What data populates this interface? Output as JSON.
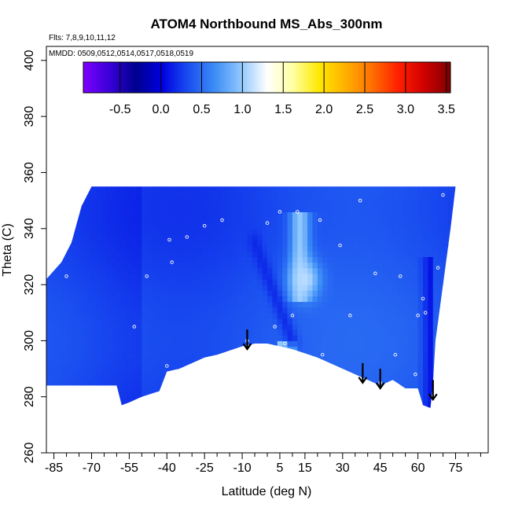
{
  "chart_data": {
    "type": "heatmap",
    "title": "ATOM4 Northbound MS_Abs_300nm",
    "flights_note": "Flts: 7,8,9,10,11,12",
    "dates_note": "MMDD: 0509,0512,0514,0517,0518,0519",
    "xlabel": "Latitude (deg N)",
    "ylabel": "Theta (C)",
    "xlim": [
      -88,
      88
    ],
    "ylim": [
      260,
      405
    ],
    "x_ticks": [
      -85,
      -70,
      -55,
      -40,
      -25,
      -10,
      5,
      15,
      30,
      45,
      60,
      75
    ],
    "x_minor_ticks": [
      -80,
      -75,
      -65,
      -60,
      -50,
      -45,
      -35,
      -30,
      -20,
      -15,
      -5,
      0,
      10,
      20,
      25,
      35,
      40,
      50,
      55,
      65,
      70,
      80,
      85
    ],
    "y_ticks": [
      260,
      280,
      300,
      320,
      340,
      360,
      380,
      400
    ],
    "colorbar": {
      "ticks": [
        -0.5,
        0.0,
        0.5,
        1.0,
        1.5,
        2.0,
        2.5,
        3.0,
        3.5
      ],
      "range": [
        -0.95,
        3.55
      ],
      "colors": [
        "#7f00ff",
        "#3800d8",
        "#00008f",
        "#0000e0",
        "#1a4ef0",
        "#3b8cf5",
        "#8ec6ff",
        "#ffffff",
        "#ffffa0",
        "#ffe800",
        "#ffb000",
        "#ff7000",
        "#ff2000",
        "#d00000",
        "#7f0000"
      ]
    },
    "field": {
      "baseline_value": 0.35,
      "top_boundary": [
        [
          -88,
          322
        ],
        [
          -82,
          328
        ],
        [
          -78,
          335
        ],
        [
          -74,
          348
        ],
        [
          -70,
          355
        ],
        [
          -55,
          355
        ],
        [
          -40,
          355
        ],
        [
          -20,
          355
        ],
        [
          0,
          355
        ],
        [
          20,
          355
        ],
        [
          40,
          355
        ],
        [
          60,
          355
        ],
        [
          75,
          355
        ]
      ],
      "right_boundary": [
        [
          75,
          355
        ],
        [
          73,
          340
        ],
        [
          70,
          320
        ],
        [
          67,
          300
        ],
        [
          66,
          285
        ],
        [
          65,
          276
        ]
      ],
      "bottom_boundary": [
        [
          65,
          276
        ],
        [
          62,
          277
        ],
        [
          60,
          283
        ],
        [
          55,
          283
        ],
        [
          50,
          286
        ],
        [
          45,
          284
        ],
        [
          40,
          286
        ],
        [
          30,
          290
        ],
        [
          20,
          294
        ],
        [
          10,
          297
        ],
        [
          0,
          299
        ],
        [
          -5,
          299
        ],
        [
          -10,
          298
        ],
        [
          -20,
          295
        ],
        [
          -25,
          294
        ],
        [
          -30,
          292
        ],
        [
          -35,
          290
        ],
        [
          -40,
          289
        ],
        [
          -43,
          282
        ],
        [
          -50,
          280
        ],
        [
          -55,
          278
        ],
        [
          -58,
          277
        ],
        [
          -60,
          284
        ],
        [
          -88,
          284
        ]
      ],
      "features": [
        {
          "type": "plume",
          "lat": 13,
          "theta_bottom": 315,
          "theta_top": 346,
          "lat_width": 4,
          "value": 1.05
        },
        {
          "type": "blob",
          "lat": 15,
          "theta": 322,
          "lat_radius": 6,
          "theta_radius": 7,
          "value": 1.1
        },
        {
          "type": "band",
          "lat_from": 5,
          "lat_to": 12,
          "theta_from": 297,
          "theta_to": 300,
          "value": 1.0
        },
        {
          "type": "streak",
          "from": [
            -5,
            335
          ],
          "to": [
            10,
            300
          ],
          "value": 0.15
        },
        {
          "type": "edge",
          "lat_from": 60,
          "lat_to": 66,
          "theta_from": 276,
          "theta_to": 330,
          "value": 0.05
        }
      ]
    },
    "sample_points": [
      {
        "lat": -80,
        "theta": 323
      },
      {
        "lat": -48,
        "theta": 323
      },
      {
        "lat": -53,
        "theta": 305
      },
      {
        "lat": -40,
        "theta": 291
      },
      {
        "lat": -38,
        "theta": 328
      },
      {
        "lat": -39,
        "theta": 336
      },
      {
        "lat": -32,
        "theta": 337
      },
      {
        "lat": -25,
        "theta": 341
      },
      {
        "lat": -18,
        "theta": 343
      },
      {
        "lat": -8,
        "theta": 300
      },
      {
        "lat": 0,
        "theta": 342
      },
      {
        "lat": 3,
        "theta": 305
      },
      {
        "lat": 5,
        "theta": 346
      },
      {
        "lat": 7,
        "theta": 299
      },
      {
        "lat": 10,
        "theta": 309
      },
      {
        "lat": 12,
        "theta": 346
      },
      {
        "lat": 21,
        "theta": 343
      },
      {
        "lat": 22,
        "theta": 295
      },
      {
        "lat": 29,
        "theta": 334
      },
      {
        "lat": 33,
        "theta": 309
      },
      {
        "lat": 37,
        "theta": 350
      },
      {
        "lat": 43,
        "theta": 324
      },
      {
        "lat": 45,
        "theta": 285
      },
      {
        "lat": 51,
        "theta": 295
      },
      {
        "lat": 53,
        "theta": 323
      },
      {
        "lat": 59,
        "theta": 288
      },
      {
        "lat": 60,
        "theta": 309
      },
      {
        "lat": 62,
        "theta": 315
      },
      {
        "lat": 63,
        "theta": 310
      },
      {
        "lat": 68,
        "theta": 326
      },
      {
        "lat": 70,
        "theta": 352
      }
    ],
    "arrows": [
      {
        "lat": -8,
        "theta_top": 304,
        "theta_tip": 297
      },
      {
        "lat": 38,
        "theta_top": 292,
        "theta_tip": 285
      },
      {
        "lat": 45,
        "theta_top": 290,
        "theta_tip": 283
      },
      {
        "lat": 66,
        "theta_top": 286,
        "theta_tip": 279
      }
    ]
  }
}
